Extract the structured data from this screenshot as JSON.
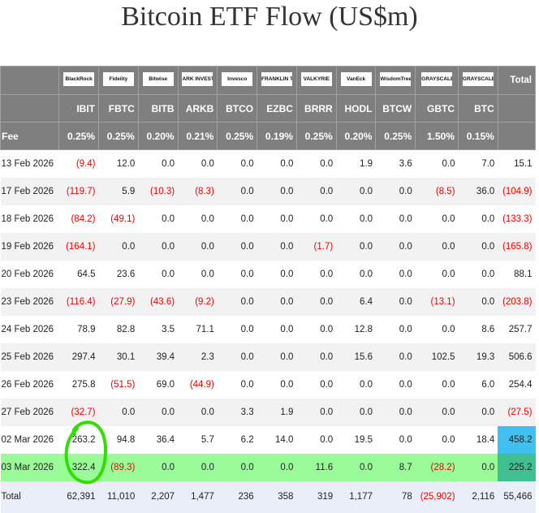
{
  "title": "Bitcoin ETF Flow (US$m)",
  "issuers": [
    "BlackRock",
    "Fidelity",
    "Bitwise",
    "ARK INVEST",
    "Invesco",
    "FRANKLIN TEMPLETON",
    "VALKYRIE",
    "VanEck",
    "WisdomTree",
    "GRAYSCALE",
    "GRAYSCALE"
  ],
  "total_label": "Total",
  "tickers": [
    "IBIT",
    "FBTC",
    "BITB",
    "ARKB",
    "BTCO",
    "EZBC",
    "BRRR",
    "HODL",
    "BTCW",
    "GBTC",
    "BTC"
  ],
  "fee_label": "Fee",
  "fees": [
    "0.25%",
    "0.25%",
    "0.20%",
    "0.21%",
    "0.25%",
    "0.19%",
    "0.25%",
    "0.20%",
    "0.25%",
    "1.50%",
    "0.15%"
  ],
  "rows": [
    {
      "date": "13 Feb 2026",
      "values": [
        "(9.4)",
        "12.0",
        "0.0",
        "0.0",
        "0.0",
        "0.0",
        "0.0",
        "1.9",
        "3.6",
        "0.0",
        "7.0"
      ],
      "total": "15.1"
    },
    {
      "date": "17 Feb 2026",
      "values": [
        "(119.7)",
        "5.9",
        "(10.3)",
        "(8.3)",
        "0.0",
        "0.0",
        "0.0",
        "0.0",
        "0.0",
        "(8.5)",
        "36.0"
      ],
      "total": "(104.9)"
    },
    {
      "date": "18 Feb 2026",
      "values": [
        "(84.2)",
        "(49.1)",
        "0.0",
        "0.0",
        "0.0",
        "0.0",
        "0.0",
        "0.0",
        "0.0",
        "0.0",
        "0.0"
      ],
      "total": "(133.3)"
    },
    {
      "date": "19 Feb 2026",
      "values": [
        "(164.1)",
        "0.0",
        "0.0",
        "0.0",
        "0.0",
        "0.0",
        "(1.7)",
        "0.0",
        "0.0",
        "0.0",
        "0.0"
      ],
      "total": "(165.8)"
    },
    {
      "date": "20 Feb 2026",
      "values": [
        "64.5",
        "23.6",
        "0.0",
        "0.0",
        "0.0",
        "0.0",
        "0.0",
        "0.0",
        "0.0",
        "0.0",
        "0.0"
      ],
      "total": "88.1"
    },
    {
      "date": "23 Feb 2026",
      "values": [
        "(116.4)",
        "(27.9)",
        "(43.6)",
        "(9.2)",
        "0.0",
        "0.0",
        "0.0",
        "6.4",
        "0.0",
        "(13.1)",
        "0.0"
      ],
      "total": "(203.8)"
    },
    {
      "date": "24 Feb 2026",
      "values": [
        "78.9",
        "82.8",
        "3.5",
        "71.1",
        "0.0",
        "0.0",
        "0.0",
        "12.8",
        "0.0",
        "0.0",
        "8.6"
      ],
      "total": "257.7"
    },
    {
      "date": "25 Feb 2026",
      "values": [
        "297.4",
        "30.1",
        "39.4",
        "2.3",
        "0.0",
        "0.0",
        "0.0",
        "15.6",
        "0.0",
        "102.5",
        "19.3"
      ],
      "total": "506.6"
    },
    {
      "date": "26 Feb 2026",
      "values": [
        "275.8",
        "(51.5)",
        "69.0",
        "(44.9)",
        "0.0",
        "0.0",
        "0.0",
        "0.0",
        "0.0",
        "0.0",
        "6.0"
      ],
      "total": "254.4"
    },
    {
      "date": "27 Feb 2026",
      "values": [
        "(32.7)",
        "0.0",
        "0.0",
        "0.0",
        "3.3",
        "1.9",
        "0.0",
        "0.0",
        "0.0",
        "0.0",
        "0.0"
      ],
      "total": "(27.5)"
    },
    {
      "date": "02 Mar 2026",
      "values": [
        "263.2",
        "94.8",
        "36.4",
        "5.7",
        "6.2",
        "14.0",
        "0.0",
        "19.5",
        "0.0",
        "0.0",
        "18.4"
      ],
      "total": "458.2"
    },
    {
      "date": "03 Mar 2026",
      "values": [
        "322.4",
        "(89.3)",
        "0.0",
        "0.0",
        "0.0",
        "0.0",
        "11.6",
        "0.0",
        "8.7",
        "(28.2)",
        "0.0"
      ],
      "total": "225.2"
    }
  ],
  "totals": {
    "label": "Total",
    "values": [
      "62,391",
      "11,010",
      "2,207",
      "1,477",
      "236",
      "358",
      "319",
      "1,177",
      "78",
      "(25,902)",
      "2,116"
    ],
    "total": "55,466"
  },
  "colors": {
    "highlight_row": "#99fc99",
    "marker_blue": "#3fc0ee",
    "marker_teal": "#40c090",
    "circle": "#33dd00",
    "negative": "#ee0000"
  }
}
